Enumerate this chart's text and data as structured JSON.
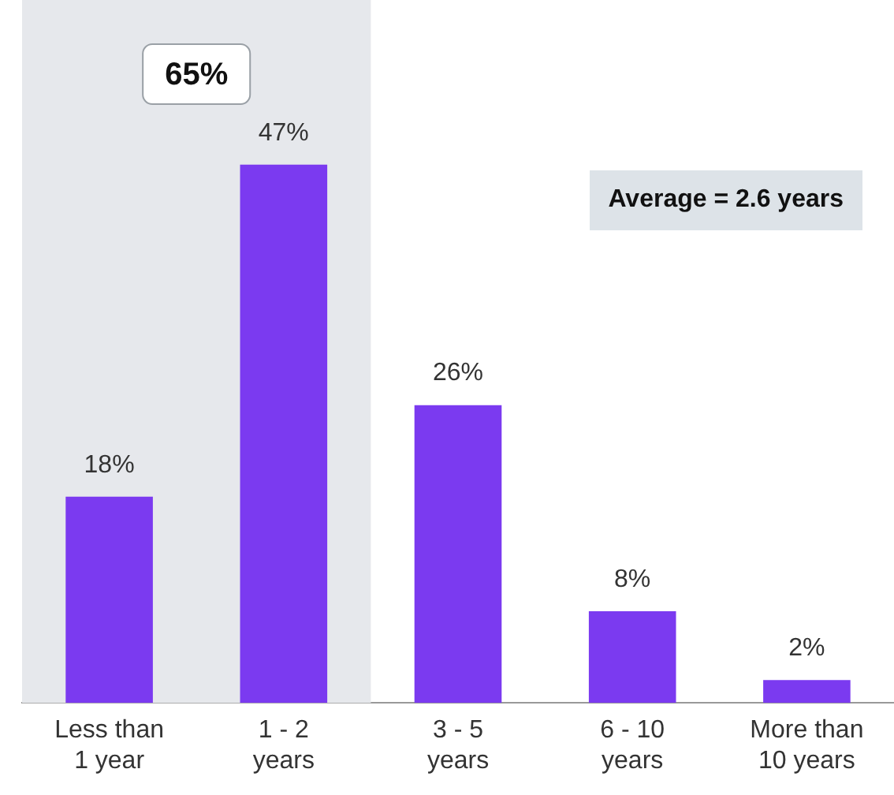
{
  "chart_data": {
    "type": "bar",
    "categories": [
      "Less than 1 year",
      "1 - 2 years",
      "3 - 5 years",
      "6 - 10 years",
      "More than 10 years"
    ],
    "values": [
      18,
      47,
      26,
      8,
      2
    ],
    "color": "#7b3af0",
    "value_labels": [
      "18%",
      "47%",
      "26%",
      "8%",
      "2%"
    ],
    "grid": false,
    "legend": false,
    "tick_labels": "x",
    "bands": [
      {
        "axis": "x",
        "from": "Less than 1 year",
        "to": "1 - 2 years",
        "label": "65%",
        "color": "#e6e8ec"
      }
    ],
    "annotations": [
      "Average = 2.6 years"
    ]
  }
}
